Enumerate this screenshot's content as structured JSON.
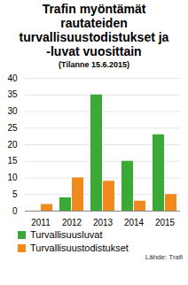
{
  "chart_data": {
    "type": "bar",
    "title": "Trafin myöntämät\nrautateiden\nturvallisuustodistukset ja\n-luvat vuosittain",
    "subtitle": "(Tilanne 15.6.2015)",
    "source": "Lähde: Trafi",
    "categories": [
      "2011",
      "2012",
      "2013",
      "2014",
      "2015"
    ],
    "series": [
      {
        "name": "Turvallisuusluvat",
        "color": "#3aa935",
        "values": [
          0,
          4,
          35,
          15,
          23
        ]
      },
      {
        "name": "Turvallisuustodistukset",
        "color": "#f18a1c",
        "values": [
          2,
          10,
          9,
          3,
          5
        ]
      }
    ],
    "ylim": [
      0,
      40
    ],
    "yticks": [
      0,
      5,
      10,
      15,
      20,
      25,
      30,
      35,
      40
    ],
    "grid": true,
    "legend": "bottom"
  }
}
